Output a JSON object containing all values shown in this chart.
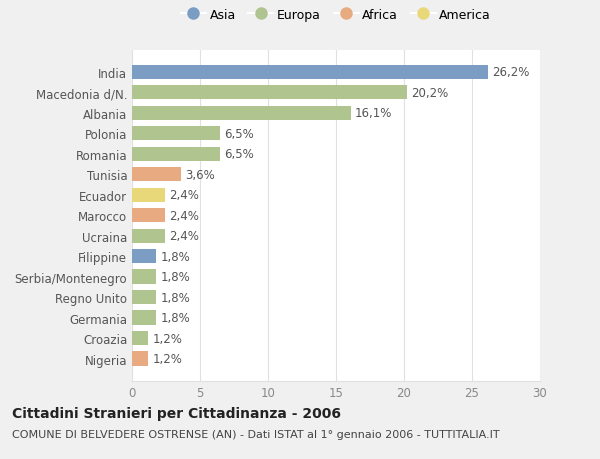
{
  "countries": [
    "Nigeria",
    "Croazia",
    "Germania",
    "Regno Unito",
    "Serbia/Montenegro",
    "Filippine",
    "Ucraina",
    "Marocco",
    "Ecuador",
    "Tunisia",
    "Romania",
    "Polonia",
    "Albania",
    "Macedonia d/N.",
    "India"
  ],
  "values": [
    1.2,
    1.2,
    1.8,
    1.8,
    1.8,
    1.8,
    2.4,
    2.4,
    2.4,
    3.6,
    6.5,
    6.5,
    16.1,
    20.2,
    26.2
  ],
  "continents": [
    "Africa",
    "Europa",
    "Europa",
    "Europa",
    "Europa",
    "Asia",
    "Europa",
    "Africa",
    "America",
    "Africa",
    "Europa",
    "Europa",
    "Europa",
    "Europa",
    "Asia"
  ],
  "continent_colors": {
    "Asia": "#7b9dc4",
    "Europa": "#b0c490",
    "Africa": "#e8aa80",
    "America": "#e8d87a"
  },
  "legend_order": [
    "Asia",
    "Europa",
    "Africa",
    "America"
  ],
  "title": "Cittadini Stranieri per Cittadinanza - 2006",
  "subtitle": "COMUNE DI BELVEDERE OSTRENSE (AN) - Dati ISTAT al 1° gennaio 2006 - TUTTITALIA.IT",
  "xlim": [
    0,
    30
  ],
  "xticks": [
    0,
    5,
    10,
    15,
    20,
    25,
    30
  ],
  "background_color": "#f0f0f0",
  "plot_bg_color": "#ffffff",
  "grid_color": "#e0e0e0",
  "bar_height": 0.7,
  "title_fontsize": 10,
  "subtitle_fontsize": 8,
  "label_fontsize": 8.5,
  "tick_fontsize": 8.5,
  "legend_fontsize": 9
}
